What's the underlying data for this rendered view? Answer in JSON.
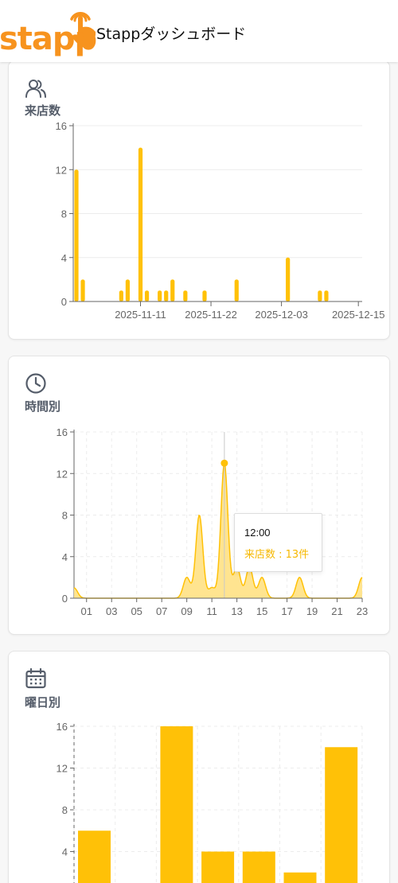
{
  "app": {
    "logo_text": "stapp",
    "title": "Stappダッシュボード"
  },
  "colors": {
    "brand": "#f7931e",
    "accent": "#ffc107",
    "area_fill": "#ffe38a",
    "text_muted": "#555d6a"
  },
  "cards": [
    {
      "title": "来店数",
      "icon": "users-icon"
    },
    {
      "title": "時間別",
      "icon": "clock-icon"
    },
    {
      "title": "曜日別",
      "icon": "calendar-icon"
    }
  ],
  "tooltip": {
    "label": "12:00",
    "value_text": "来店数 : 13件"
  },
  "chart_data": [
    {
      "type": "bar",
      "xaxis": "time",
      "x": [
        "2025-11-01",
        "2025-11-02",
        "2025-11-08",
        "2025-11-09",
        "2025-11-11",
        "2025-11-12",
        "2025-11-14",
        "2025-11-15",
        "2025-11-16",
        "2025-11-18",
        "2025-11-21",
        "2025-11-26",
        "2025-12-04",
        "2025-12-09",
        "2025-12-10"
      ],
      "values": [
        12,
        2,
        1,
        2,
        14,
        1,
        1,
        1,
        2,
        1,
        1,
        2,
        4,
        1,
        1
      ],
      "xticks": [
        "2025-11-11",
        "2025-11-22",
        "2025-12-03",
        "2025-12-15"
      ],
      "ylim": [
        0,
        16
      ],
      "yticks": [
        0,
        4,
        8,
        12,
        16
      ]
    },
    {
      "type": "area",
      "x": [
        "00",
        "01",
        "02",
        "03",
        "04",
        "05",
        "06",
        "07",
        "08",
        "09",
        "10",
        "11",
        "12",
        "13",
        "14",
        "15",
        "16",
        "17",
        "18",
        "19",
        "20",
        "21",
        "22",
        "23"
      ],
      "values": [
        1,
        0,
        0,
        0,
        0,
        0,
        0,
        0,
        0,
        2,
        8,
        1,
        13,
        3,
        3,
        2,
        0,
        0,
        2,
        0,
        0,
        0,
        0,
        2
      ],
      "xticks": [
        "01",
        "03",
        "05",
        "07",
        "09",
        "11",
        "13",
        "15",
        "17",
        "19",
        "21",
        "23"
      ],
      "ylim": [
        0,
        16
      ],
      "yticks": [
        0,
        4,
        8,
        12,
        16
      ],
      "highlight": "12"
    },
    {
      "type": "bar",
      "values": [
        6,
        0,
        16,
        4,
        4,
        2,
        14
      ],
      "ylim": [
        0,
        16
      ],
      "yticks": [
        0,
        4,
        8,
        12,
        16
      ]
    }
  ]
}
